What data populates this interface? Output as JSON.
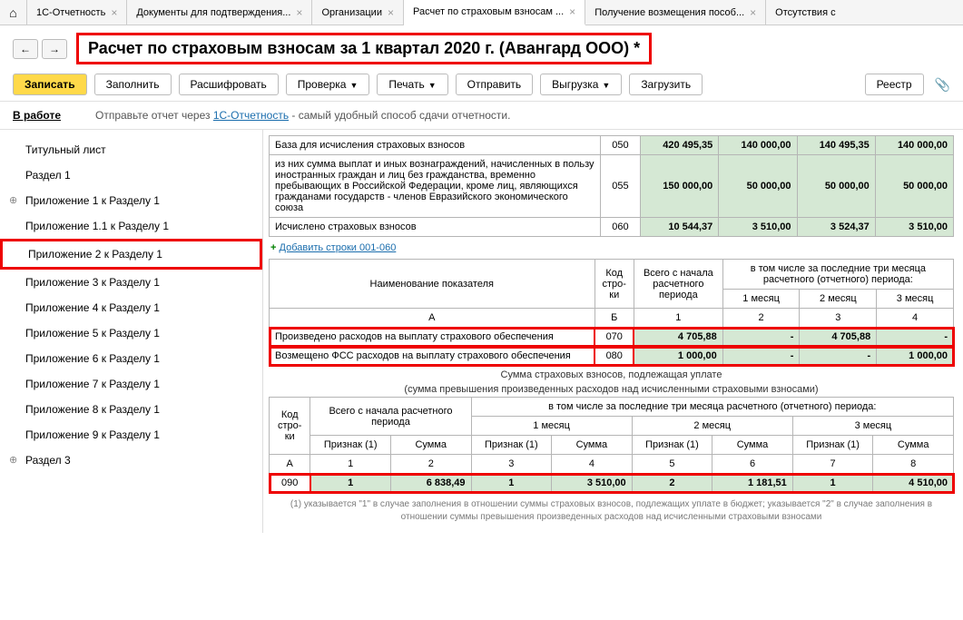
{
  "tabs": {
    "t1": "1С-Отчетность",
    "t2": "Документы для подтверждения...",
    "t3": "Организации",
    "t4": "Расчет по страховым взносам ...",
    "t5": "Получение возмещения пособ...",
    "t6": "Отсутствия с"
  },
  "title": "Расчет по страховым взносам за 1 квартал 2020 г. (Авангард ООО) *",
  "toolbar": {
    "save": "Записать",
    "fill": "Заполнить",
    "decrypt": "Расшифровать",
    "check": "Проверка",
    "print": "Печать",
    "send": "Отправить",
    "export": "Выгрузка",
    "load": "Загрузить",
    "registry": "Реестр"
  },
  "sub": {
    "inwork": "В работе",
    "hint1": "Отправьте отчет через ",
    "hintlink": "1С-Отчетность",
    "hint2": " - самый удобный способ сдачи отчетности."
  },
  "sidebar": [
    "Титульный лист",
    "Раздел 1",
    "Приложение 1 к Разделу 1",
    "Приложение 1.1 к Разделу 1",
    "Приложение 2 к Разделу 1",
    "Приложение 3 к Разделу 1",
    "Приложение 4 к Разделу 1",
    "Приложение 5 к Разделу 1",
    "Приложение 6 к Разделу 1",
    "Приложение 7 к Разделу 1",
    "Приложение 8 к Разделу 1",
    "Приложение 9 к Разделу 1",
    "Раздел 3"
  ],
  "sidebar_selected": 4,
  "sidebar_exp": [
    2,
    12
  ],
  "t1": {
    "rows": [
      {
        "desc": "База для исчисления страховых взносов",
        "code": "050",
        "v": [
          "420 495,35",
          "140 000,00",
          "140 495,35",
          "140 000,00"
        ]
      },
      {
        "desc": "из них сумма выплат и иных вознаграждений, начисленных в пользу иностранных граждан и лиц без гражданства, временно пребывающих в Российской Федерации, кроме лиц, являющихся гражданами государств - членов Евразийского экономического союза",
        "code": "055",
        "v": [
          "150 000,00",
          "50 000,00",
          "50 000,00",
          "50 000,00"
        ]
      },
      {
        "desc": "Исчислено страховых взносов",
        "code": "060",
        "v": [
          "10 544,37",
          "3 510,00",
          "3 524,37",
          "3 510,00"
        ]
      }
    ],
    "addlink": "Добавить строки 001-060"
  },
  "t2": {
    "h_name": "Наименование показателя",
    "h_code": "Код стро-ки",
    "h_total": "Всего с начала расчетного периода",
    "h_months": "в том числе за последние три месяца расчетного (отчетного) периода:",
    "m1": "1 месяц",
    "m2": "2 месяц",
    "m3": "3 месяц",
    "sub": [
      "А",
      "Б",
      "1",
      "2",
      "3",
      "4"
    ],
    "rows": [
      {
        "desc": "Произведено расходов на выплату страхового обеспечения",
        "code": "070",
        "v": [
          "4 705,88",
          "-",
          "4 705,88",
          "-"
        ],
        "red": true
      },
      {
        "desc": "Возмещено ФСС расходов на выплату страхового обеспечения",
        "code": "080",
        "v": [
          "1 000,00",
          "-",
          "-",
          "1 000,00"
        ],
        "red": true
      }
    ]
  },
  "mid": {
    "l1": "Сумма страховых взносов, подлежащая уплате",
    "l2": "(сумма превышения произведенных расходов над исчисленными страховыми взносами)"
  },
  "t3": {
    "h_code": "Код стро-ки",
    "h_total": "Всего с начала расчетного периода",
    "h_months": "в том числе за последние три месяца расчетного (отчетного) периода:",
    "m1": "1 месяц",
    "m2": "2 месяц",
    "m3": "3 месяц",
    "pr": "Признак (1)",
    "sum": "Сумма",
    "sub": [
      "А",
      "1",
      "2",
      "3",
      "4",
      "5",
      "6",
      "7",
      "8"
    ],
    "row": {
      "code": "090",
      "v": [
        "1",
        "6 838,49",
        "1",
        "3 510,00",
        "2",
        "1 181,51",
        "1",
        "4 510,00"
      ]
    }
  },
  "footnote": "(1) указывается \"1\" в случае заполнения в отношении суммы страховых взносов, подлежащих уплате в бюджет; указывается \"2\" в случае заполнения в отношении суммы превышения произведенных расходов над исчисленными страховыми взносами",
  "colors": {
    "accent": "#e00",
    "cell_bg": "#d5e8d4",
    "btn_primary": "#ffd94a"
  }
}
